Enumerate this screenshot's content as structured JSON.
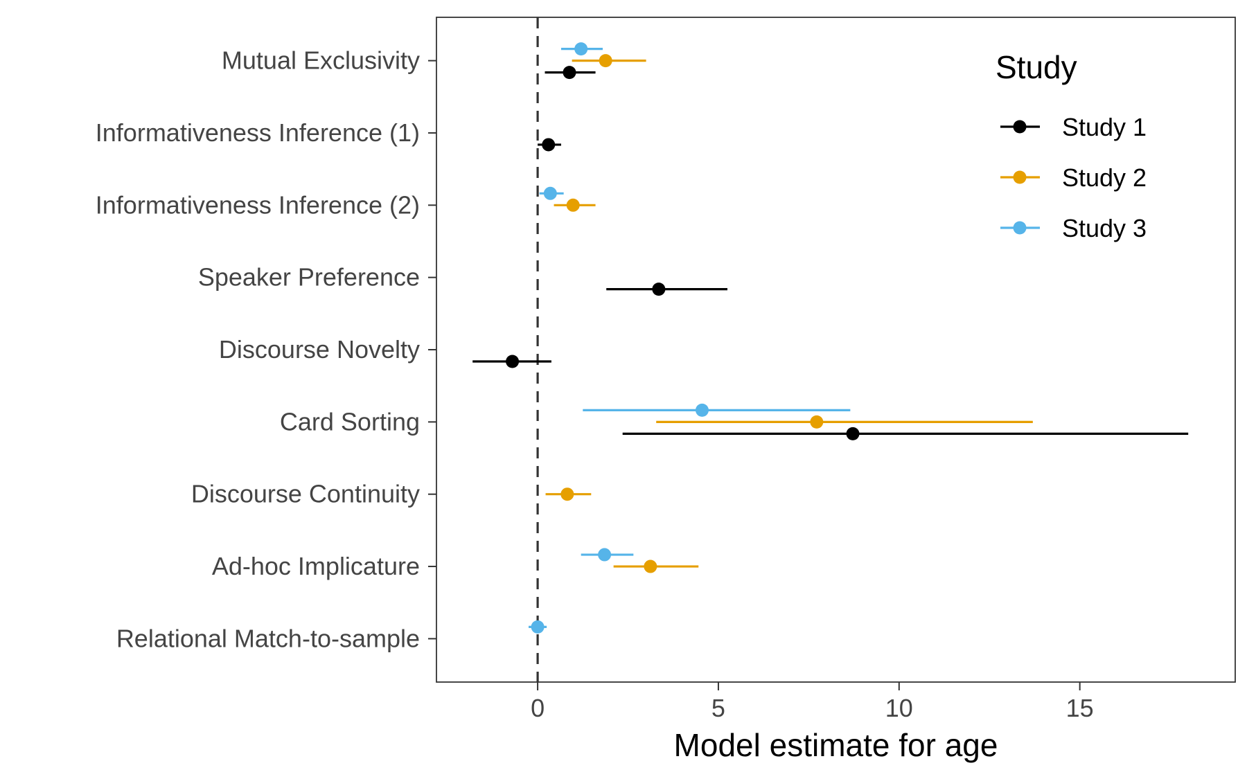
{
  "chart_data": {
    "type": "scatter",
    "subtype": "forest-plot-with-error-bars",
    "title": "",
    "xlabel": "Model estimate for age",
    "ylabel": "",
    "xlim": [
      -2.8,
      19.3
    ],
    "xticks": [
      0,
      5,
      10,
      15
    ],
    "reference_line": {
      "x": 0,
      "style": "dashed"
    },
    "grid": false,
    "legend": {
      "title": "Study",
      "position": "top-right-inside"
    },
    "categories": [
      "Mutual Exclusivity",
      "Informativeness Inference (1)",
      "Informativeness Inference (2)",
      "Speaker Preference",
      "Discourse Novelty",
      "Card Sorting",
      "Discourse Continuity",
      "Ad-hoc Implicature",
      "Relational Match-to-sample"
    ],
    "series": [
      {
        "name": "Study 1",
        "color": "#000000",
        "points": [
          {
            "category": "Mutual Exclusivity",
            "estimate": 0.88,
            "lower": 0.2,
            "upper": 1.6
          },
          {
            "category": "Informativeness Inference (1)",
            "estimate": 0.3,
            "lower": 0.0,
            "upper": 0.65
          },
          {
            "category": "Speaker Preference",
            "estimate": 3.35,
            "lower": 1.9,
            "upper": 5.25
          },
          {
            "category": "Discourse Novelty",
            "estimate": -0.7,
            "lower": -1.8,
            "upper": 0.38
          },
          {
            "category": "Card Sorting",
            "estimate": 8.72,
            "lower": 2.35,
            "upper": 18.0
          }
        ]
      },
      {
        "name": "Study 2",
        "color": "#E69F00",
        "points": [
          {
            "category": "Mutual Exclusivity",
            "estimate": 1.88,
            "lower": 0.95,
            "upper": 3.0
          },
          {
            "category": "Informativeness Inference (2)",
            "estimate": 0.98,
            "lower": 0.45,
            "upper": 1.6
          },
          {
            "category": "Card Sorting",
            "estimate": 7.72,
            "lower": 3.28,
            "upper": 13.7
          },
          {
            "category": "Discourse Continuity",
            "estimate": 0.82,
            "lower": 0.22,
            "upper": 1.48
          },
          {
            "category": "Ad-hoc Implicature",
            "estimate": 3.12,
            "lower": 2.1,
            "upper": 4.45
          }
        ]
      },
      {
        "name": "Study 3",
        "color": "#56B4E9",
        "points": [
          {
            "category": "Mutual Exclusivity",
            "estimate": 1.2,
            "lower": 0.65,
            "upper": 1.8
          },
          {
            "category": "Informativeness Inference (2)",
            "estimate": 0.35,
            "lower": 0.05,
            "upper": 0.72
          },
          {
            "category": "Card Sorting",
            "estimate": 4.55,
            "lower": 1.25,
            "upper": 8.65
          },
          {
            "category": "Ad-hoc Implicature",
            "estimate": 1.85,
            "lower": 1.2,
            "upper": 2.65
          },
          {
            "category": "Relational Match-to-sample",
            "estimate": 0.0,
            "lower": -0.25,
            "upper": 0.25
          }
        ]
      }
    ]
  }
}
